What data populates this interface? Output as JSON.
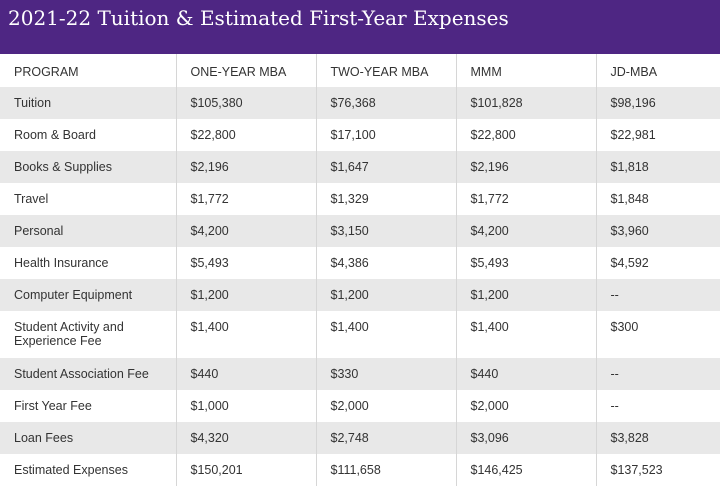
{
  "title": "2021-22 Tuition & Estimated First-Year Expenses",
  "colors": {
    "header_bg": "#4e2683",
    "stripe": "#e8e8e8"
  },
  "columns": [
    "PROGRAM",
    "ONE-YEAR MBA",
    "TWO-YEAR MBA",
    "MMM",
    "JD-MBA"
  ],
  "rows": [
    {
      "program": "Tuition",
      "values": [
        "$105,380",
        "$76,368",
        "$101,828",
        "$98,196"
      ]
    },
    {
      "program": "Room & Board",
      "values": [
        "$22,800",
        "$17,100",
        "$22,800",
        "$22,981"
      ]
    },
    {
      "program": "Books & Supplies",
      "values": [
        "$2,196",
        "$1,647",
        "$2,196",
        "$1,818"
      ]
    },
    {
      "program": "Travel",
      "values": [
        "$1,772",
        "$1,329",
        "$1,772",
        "$1,848"
      ]
    },
    {
      "program": "Personal",
      "values": [
        "$4,200",
        "$3,150",
        "$4,200",
        "$3,960"
      ]
    },
    {
      "program": "Health Insurance",
      "values": [
        "$5,493",
        "$4,386",
        "$5,493",
        "$4,592"
      ]
    },
    {
      "program": "Computer Equipment",
      "values": [
        "$1,200",
        "$1,200",
        "$1,200",
        "--"
      ]
    },
    {
      "program": "Student Activity and Experience Fee",
      "values": [
        "$1,400",
        "$1,400",
        "$1,400",
        "$300"
      ]
    },
    {
      "program": "Student Association Fee",
      "values": [
        "$440",
        "$330",
        "$440",
        "--"
      ]
    },
    {
      "program": "First Year Fee",
      "values": [
        "$1,000",
        "$2,000",
        "$2,000",
        "--"
      ]
    },
    {
      "program": "Loan Fees",
      "values": [
        "$4,320",
        "$2,748",
        "$3,096",
        "$3,828"
      ]
    },
    {
      "program": "Estimated Expenses",
      "values": [
        "$150,201",
        "$111,658",
        "$146,425",
        "$137,523"
      ]
    }
  ]
}
